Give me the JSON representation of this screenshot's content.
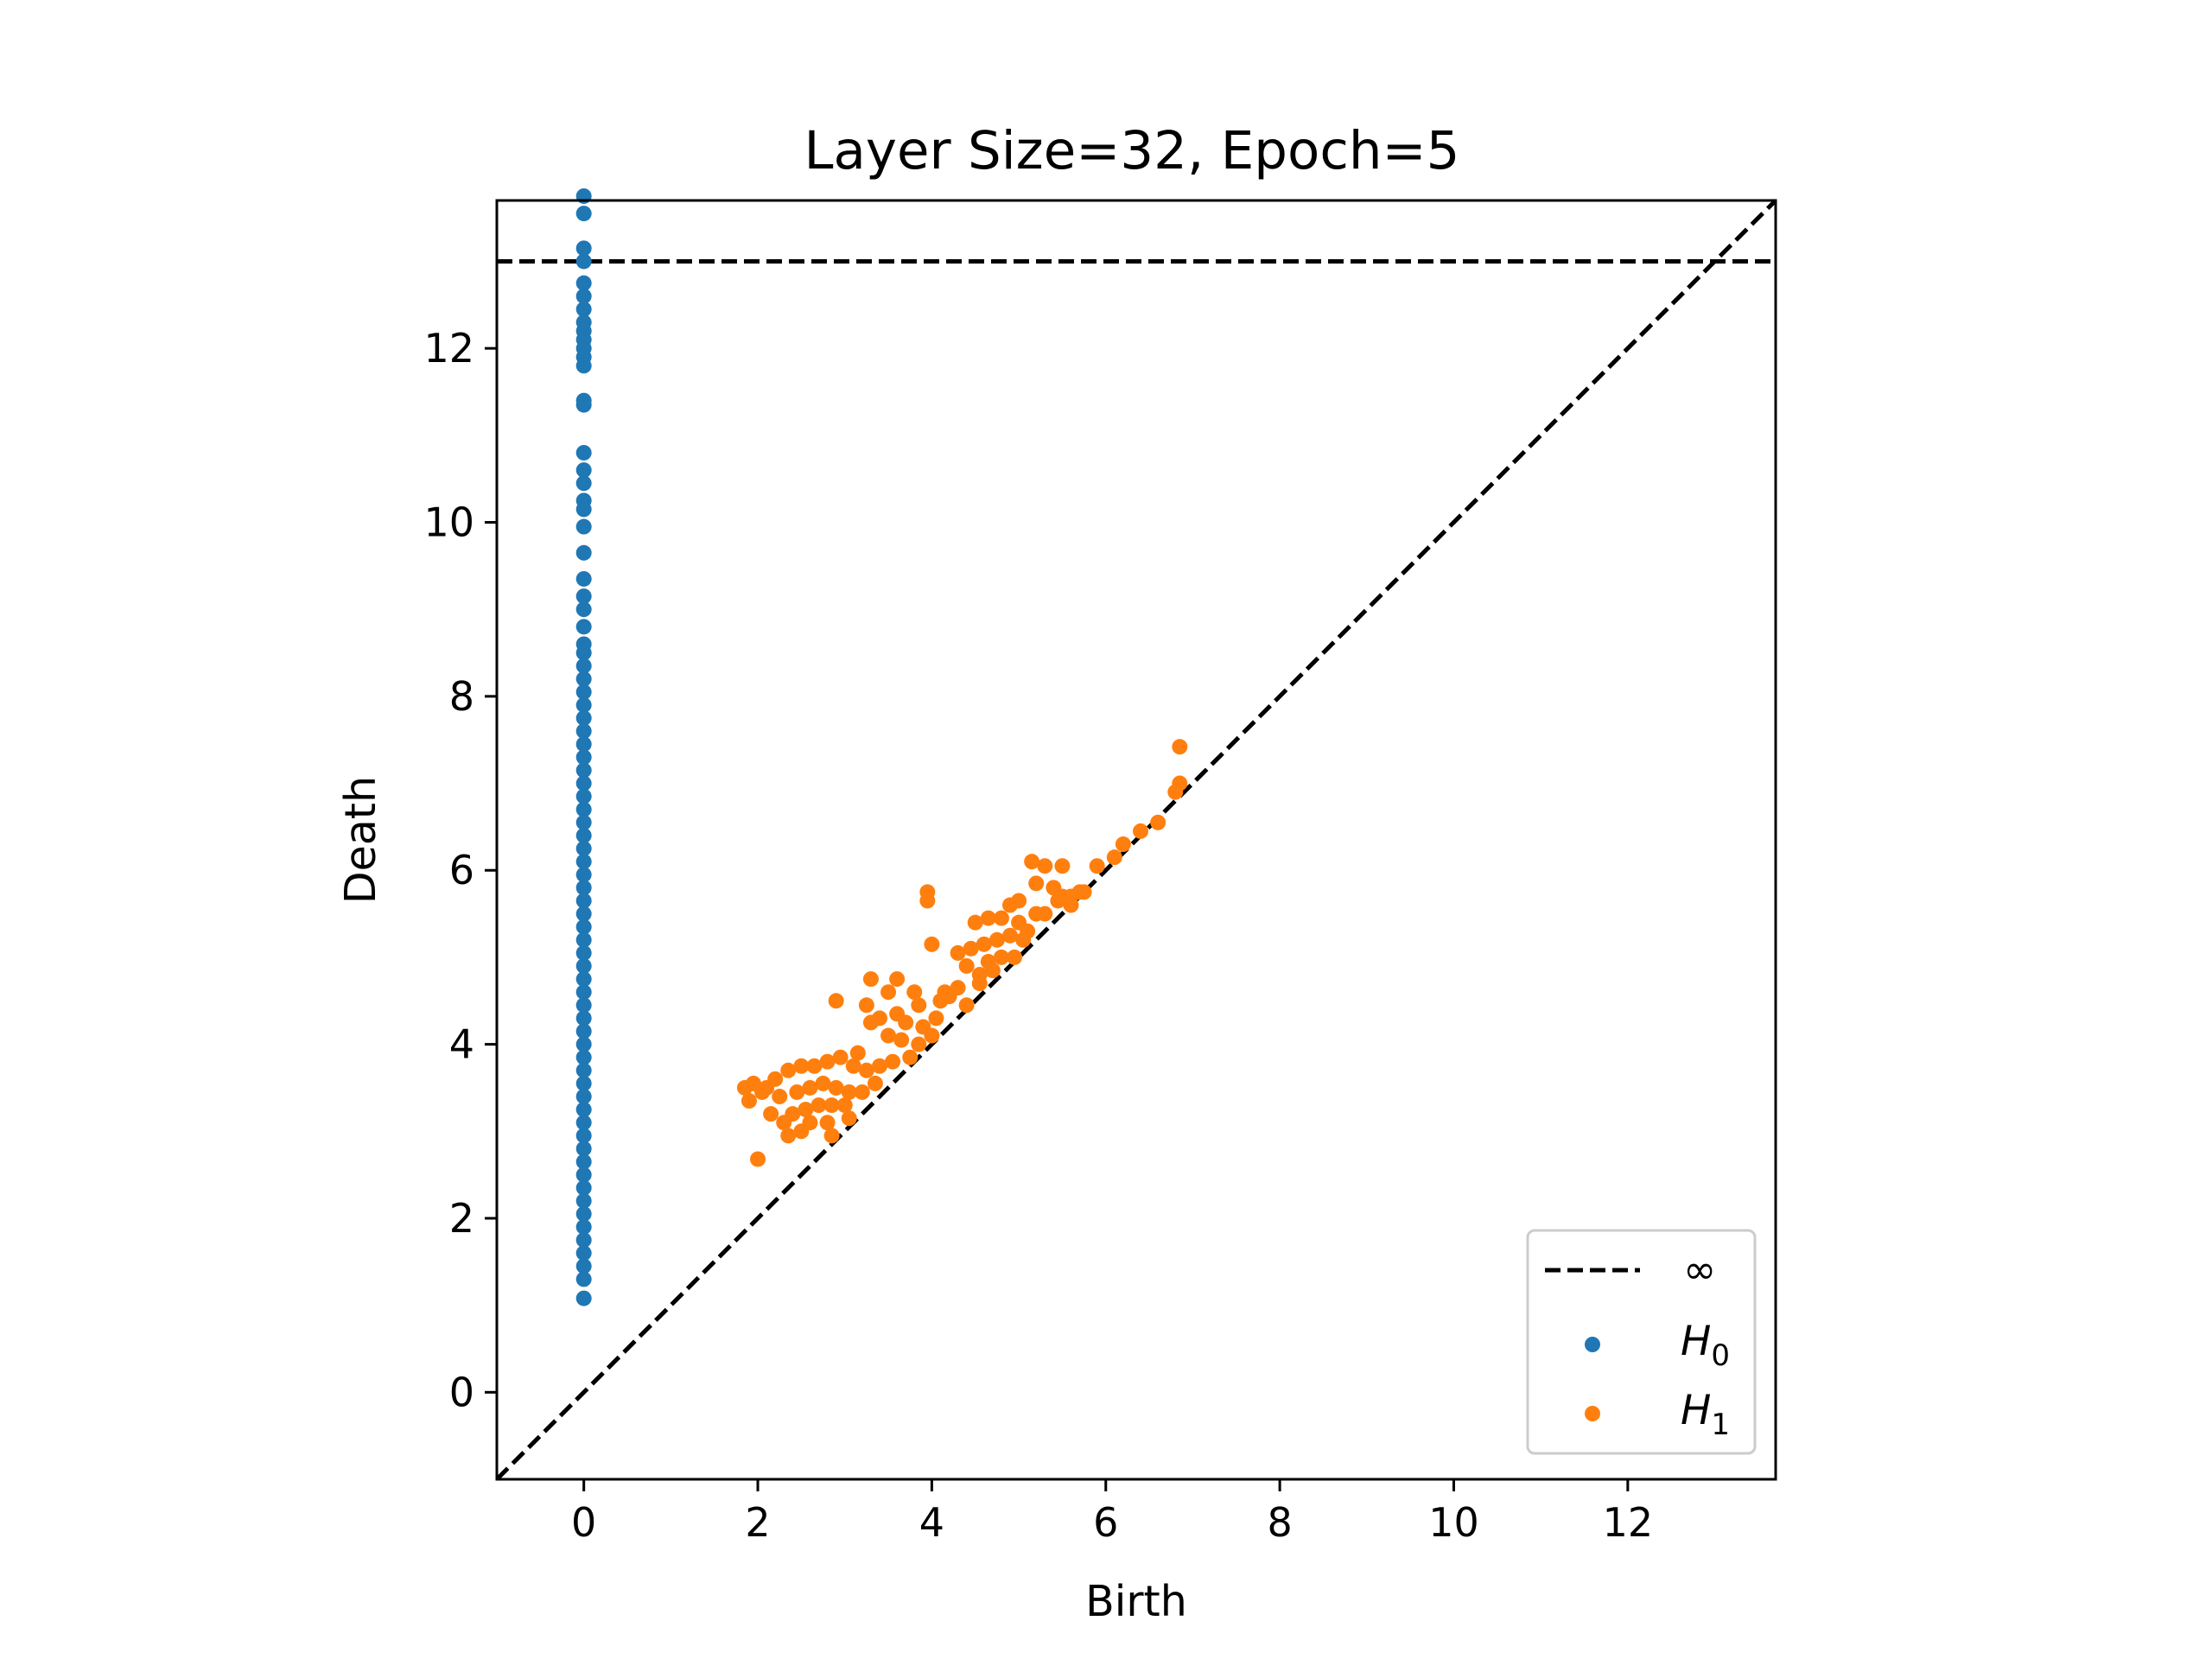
{
  "chart_data": {
    "type": "scatter",
    "title": "Layer Size=32, Epoch=5",
    "xlabel": "Birth",
    "ylabel": "Death",
    "xlim": [
      -1,
      13.7
    ],
    "ylim": [
      -1,
      13.7
    ],
    "xticks": [
      0,
      2,
      4,
      6,
      8,
      10,
      12
    ],
    "yticks": [
      0,
      2,
      4,
      6,
      8,
      10,
      12
    ],
    "grid": false,
    "legend_position": "lower-right",
    "diagonal": {
      "from": [
        -1,
        -1
      ],
      "to": [
        13.7,
        13.7
      ],
      "style": "dashed",
      "color": "#000000"
    },
    "infinity_line": {
      "y": 13.0,
      "label": "∞",
      "style": "dashed",
      "color": "#000000"
    },
    "series": [
      {
        "name": "H",
        "subscript": "0",
        "color": "#1f77b4",
        "x_all": 0,
        "y": [
          13.75,
          13.55,
          13.15,
          13.0,
          12.75,
          12.6,
          12.45,
          12.3,
          12.2,
          12.1,
          12.0,
          11.9,
          11.8,
          11.4,
          11.35,
          10.8,
          10.6,
          10.45,
          10.25,
          10.15,
          9.95,
          9.65,
          9.35,
          9.15,
          9.0,
          8.8,
          8.6,
          8.5,
          8.35,
          8.2,
          8.05,
          7.9,
          7.75,
          7.6,
          7.45,
          7.3,
          7.15,
          7.0,
          6.85,
          6.7,
          6.55,
          6.4,
          6.25,
          6.1,
          5.95,
          5.8,
          5.65,
          5.5,
          5.35,
          5.2,
          5.05,
          4.9,
          4.75,
          4.6,
          4.45,
          4.3,
          4.15,
          4.0,
          3.85,
          3.7,
          3.55,
          3.4,
          3.25,
          3.1,
          2.95,
          2.8,
          2.65,
          2.5,
          2.35,
          2.2,
          2.05,
          1.9,
          1.75,
          1.6,
          1.45,
          1.3,
          1.08
        ]
      },
      {
        "name": "H",
        "subscript": "1",
        "color": "#ff7f0e",
        "points": [
          [
            6.85,
            7.42
          ],
          [
            6.85,
            7.0
          ],
          [
            6.8,
            6.9
          ],
          [
            6.6,
            6.55
          ],
          [
            6.4,
            6.45
          ],
          [
            6.2,
            6.3
          ],
          [
            6.1,
            6.15
          ],
          [
            5.9,
            6.05
          ],
          [
            5.5,
            6.05
          ],
          [
            5.3,
            6.05
          ],
          [
            5.15,
            6.1
          ],
          [
            5.7,
            5.75
          ],
          [
            5.6,
            5.6
          ],
          [
            5.5,
            5.7
          ],
          [
            5.4,
            5.8
          ],
          [
            5.2,
            5.85
          ],
          [
            5.0,
            5.65
          ],
          [
            4.9,
            5.6
          ],
          [
            4.8,
            5.45
          ],
          [
            4.65,
            5.45
          ],
          [
            4.5,
            5.4
          ],
          [
            5.1,
            5.3
          ],
          [
            5.0,
            5.4
          ],
          [
            4.9,
            5.25
          ],
          [
            4.75,
            5.2
          ],
          [
            4.6,
            5.15
          ],
          [
            4.45,
            5.1
          ],
          [
            4.3,
            5.05
          ],
          [
            5.2,
            5.5
          ],
          [
            5.05,
            5.2
          ],
          [
            4.95,
            5.0
          ],
          [
            4.8,
            5.0
          ],
          [
            4.7,
            4.85
          ],
          [
            4.55,
            4.8
          ],
          [
            4.4,
            4.9
          ],
          [
            3.95,
            5.75
          ],
          [
            3.95,
            5.65
          ],
          [
            4.0,
            5.15
          ],
          [
            4.3,
            4.65
          ],
          [
            4.2,
            4.55
          ],
          [
            4.1,
            4.5
          ],
          [
            4.4,
            4.45
          ],
          [
            3.6,
            4.75
          ],
          [
            3.3,
            4.75
          ],
          [
            3.5,
            4.6
          ],
          [
            3.25,
            4.45
          ],
          [
            3.85,
            4.45
          ],
          [
            3.6,
            4.35
          ],
          [
            3.4,
            4.3
          ],
          [
            3.3,
            4.25
          ],
          [
            3.7,
            4.25
          ],
          [
            3.9,
            4.2
          ],
          [
            4.05,
            4.3
          ],
          [
            3.5,
            4.1
          ],
          [
            3.65,
            4.05
          ],
          [
            3.85,
            4.0
          ],
          [
            4.0,
            4.1
          ],
          [
            3.75,
            3.85
          ],
          [
            3.55,
            3.8
          ],
          [
            3.4,
            3.75
          ],
          [
            3.25,
            3.7
          ],
          [
            3.1,
            3.75
          ],
          [
            2.95,
            3.85
          ],
          [
            3.15,
            3.9
          ],
          [
            2.8,
            3.8
          ],
          [
            2.65,
            3.75
          ],
          [
            2.5,
            3.75
          ],
          [
            2.35,
            3.7
          ],
          [
            2.2,
            3.6
          ],
          [
            2.1,
            3.5
          ],
          [
            1.95,
            3.55
          ],
          [
            1.85,
            3.5
          ],
          [
            1.9,
            3.35
          ],
          [
            2.05,
            3.45
          ],
          [
            2.25,
            3.4
          ],
          [
            2.45,
            3.45
          ],
          [
            2.6,
            3.5
          ],
          [
            2.75,
            3.55
          ],
          [
            2.9,
            3.5
          ],
          [
            3.05,
            3.45
          ],
          [
            3.2,
            3.45
          ],
          [
            3.35,
            3.55
          ],
          [
            3.0,
            3.3
          ],
          [
            2.85,
            3.3
          ],
          [
            2.7,
            3.3
          ],
          [
            2.55,
            3.25
          ],
          [
            2.4,
            3.2
          ],
          [
            2.3,
            3.1
          ],
          [
            2.15,
            3.2
          ],
          [
            2.6,
            3.1
          ],
          [
            2.8,
            3.1
          ],
          [
            3.05,
            3.15
          ],
          [
            2.5,
            3.0
          ],
          [
            2.35,
            2.95
          ],
          [
            2.85,
            2.95
          ],
          [
            2.0,
            2.68
          ],
          [
            2.9,
            4.5
          ],
          [
            3.8,
            4.6
          ],
          [
            4.15,
            4.6
          ],
          [
            4.55,
            4.7
          ],
          [
            4.65,
            4.95
          ],
          [
            5.3,
            5.5
          ],
          [
            5.45,
            5.65
          ],
          [
            5.6,
            5.7
          ],
          [
            5.75,
            5.75
          ]
        ]
      }
    ]
  }
}
